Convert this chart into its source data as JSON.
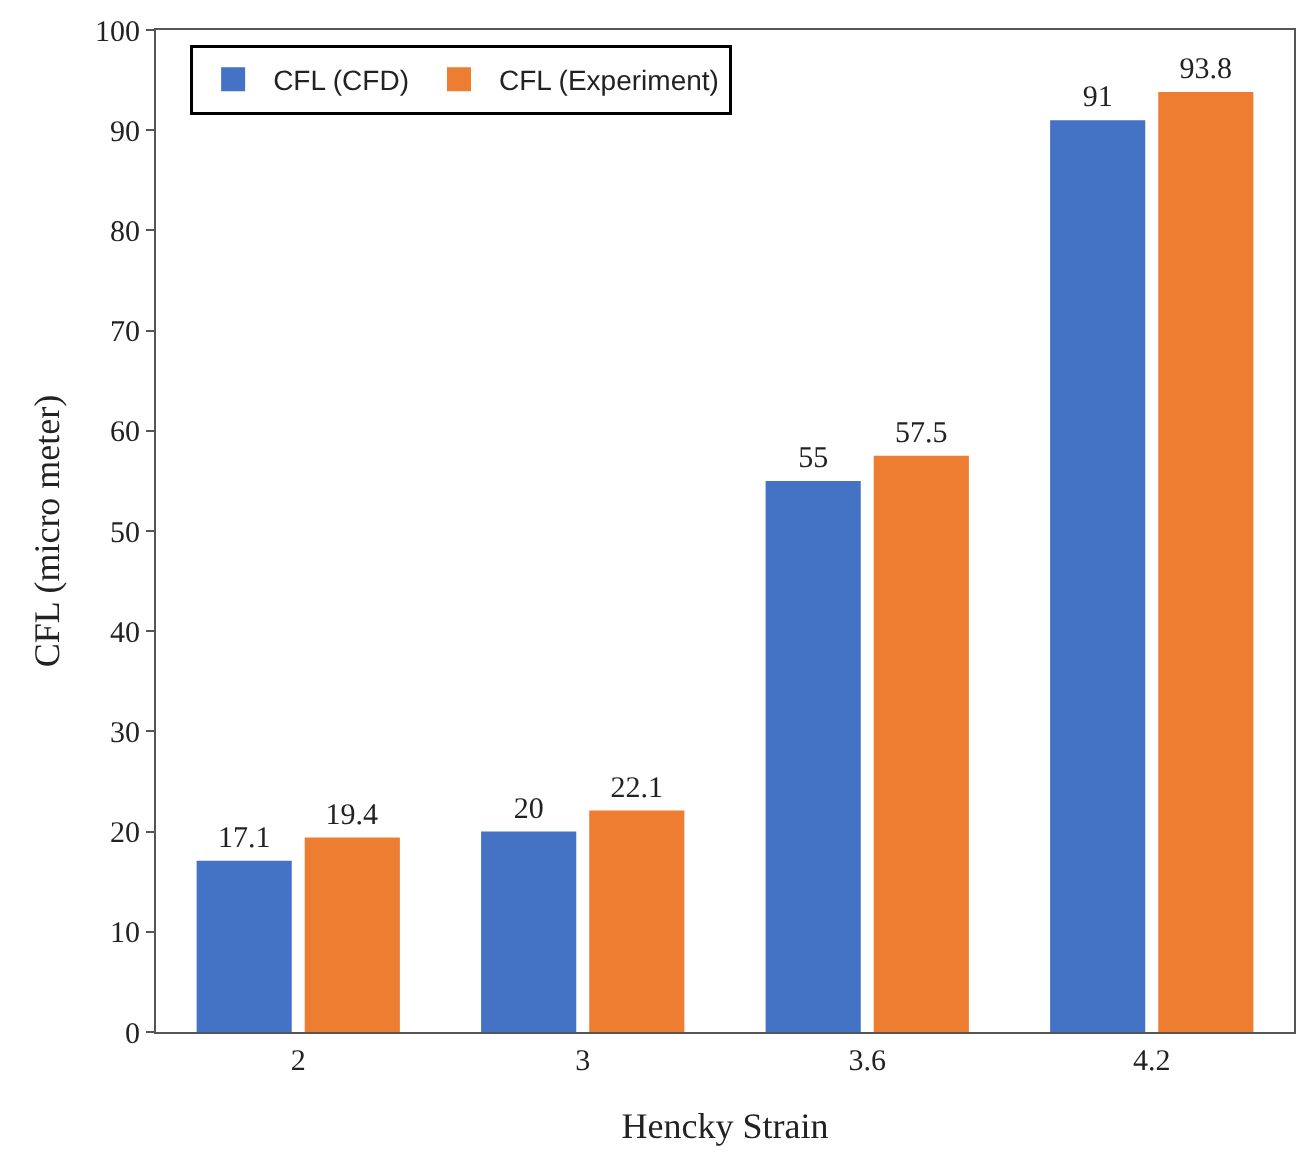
{
  "chart_data": {
    "type": "bar",
    "xlabel": "Hencky Strain",
    "ylabel": "CFL (micro meter)",
    "categories": [
      "2",
      "3",
      "3.6",
      "4.2"
    ],
    "series": [
      {
        "name": "CFL (CFD)",
        "color": "#4472c4",
        "values": [
          17.1,
          20,
          55,
          91
        ]
      },
      {
        "name": "CFL (Experiment)",
        "color": "#ed7d31",
        "values": [
          19.4,
          22.1,
          57.5,
          93.8
        ]
      }
    ],
    "ylim": [
      0,
      100
    ],
    "yticks": [
      0,
      10,
      20,
      30,
      40,
      50,
      60,
      70,
      80,
      90,
      100
    ],
    "grid": false,
    "legend": "top left",
    "data_labels": true
  }
}
